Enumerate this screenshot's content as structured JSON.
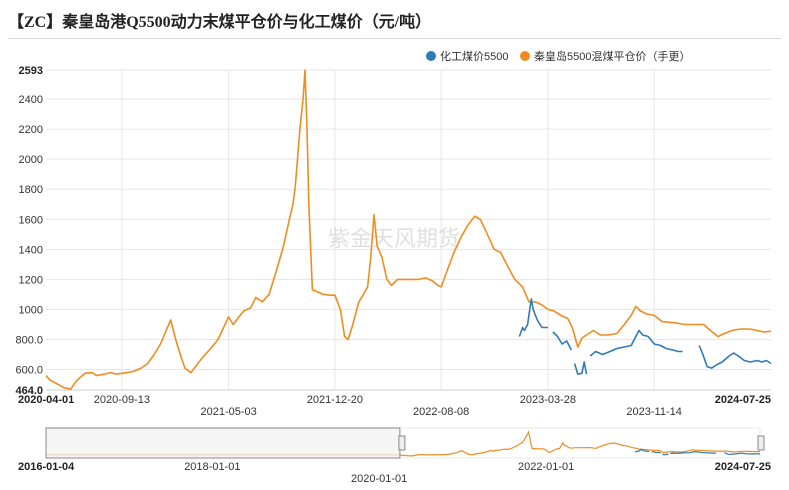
{
  "chart_data": {
    "type": "line",
    "title": "【ZC】秦皇岛港Q5500动力末煤平仓价与化工煤价（元/吨）",
    "watermark": "紫金天风期货",
    "ylim": [
      464.0,
      2593
    ],
    "y_ticks": [
      "464.0",
      "600.0",
      "800.0",
      "1000",
      "1200",
      "1400",
      "1600",
      "1800",
      "2000",
      "2200",
      "2400",
      "2593"
    ],
    "x_range": [
      "2020-04-01",
      "2024-07-25"
    ],
    "x_ticks_row1": [
      "2020-04-01",
      "2020-09-13",
      "2021-12-20",
      "2023-03-28",
      "2024-07-25"
    ],
    "x_ticks_row2": [
      "2021-05-03",
      "2022-08-08",
      "2023-11-14"
    ],
    "navigator": {
      "x_range": [
        "2016-01-04",
        "2024-07-25"
      ],
      "window": [
        "2016-01-04",
        "2020-04-01"
      ],
      "ticks_row1": [
        "2016-01-04",
        "2018-01-01",
        "2022-01-01",
        "2024-07-25"
      ],
      "ticks_row2": [
        "2020-01-01"
      ]
    },
    "legend_position": "top-right",
    "series": [
      {
        "name": "化工煤价5500",
        "color": "#2e7bb5",
        "segments": [
          [
            [
              "2023-01-25",
              820
            ],
            [
              "2023-02-01",
              880
            ],
            [
              "2023-02-05",
              860
            ],
            [
              "2023-02-12",
              900
            ],
            [
              "2023-02-20",
              1070
            ],
            [
              "2023-02-24",
              1000
            ],
            [
              "2023-03-05",
              930
            ],
            [
              "2023-03-15",
              880
            ],
            [
              "2023-03-28",
              880
            ]
          ],
          [
            [
              "2023-04-08",
              850
            ],
            [
              "2023-04-18",
              820
            ],
            [
              "2023-04-28",
              770
            ],
            [
              "2023-05-08",
              790
            ],
            [
              "2023-05-18",
              730
            ]
          ],
          [
            [
              "2023-05-25",
              640
            ],
            [
              "2023-06-01",
              570
            ],
            [
              "2023-06-10",
              575
            ],
            [
              "2023-06-15",
              650
            ],
            [
              "2023-06-20",
              570
            ]
          ],
          [
            [
              "2023-06-28",
              690
            ],
            [
              "2023-07-10",
              720
            ],
            [
              "2023-07-25",
              700
            ],
            [
              "2023-08-10",
              720
            ],
            [
              "2023-08-25",
              740
            ],
            [
              "2023-09-10",
              750
            ],
            [
              "2023-09-25",
              760
            ],
            [
              "2023-10-05",
              820
            ],
            [
              "2023-10-12",
              860
            ],
            [
              "2023-10-20",
              830
            ],
            [
              "2023-11-01",
              820
            ],
            [
              "2023-11-14",
              770
            ],
            [
              "2023-11-28",
              760
            ],
            [
              "2023-12-10",
              740
            ],
            [
              "2023-12-25",
              730
            ],
            [
              "2024-01-05",
              720
            ],
            [
              "2024-01-15",
              720
            ]
          ],
          [
            [
              "2024-02-20",
              760
            ],
            [
              "2024-02-28",
              700
            ],
            [
              "2024-03-08",
              620
            ],
            [
              "2024-03-18",
              610
            ],
            [
              "2024-03-28",
              630
            ],
            [
              "2024-04-10",
              650
            ],
            [
              "2024-04-25",
              690
            ],
            [
              "2024-05-05",
              710
            ],
            [
              "2024-05-15",
              690
            ],
            [
              "2024-05-28",
              660
            ],
            [
              "2024-06-10",
              650
            ],
            [
              "2024-06-25",
              660
            ],
            [
              "2024-07-05",
              650
            ],
            [
              "2024-07-15",
              660
            ],
            [
              "2024-07-25",
              640
            ]
          ]
        ]
      },
      {
        "name": "秦皇岛5500混煤平仓价（手更）",
        "color": "#f28b1e",
        "segments": [
          [
            [
              "2020-04-01",
              560
            ],
            [
              "2020-04-10",
              530
            ],
            [
              "2020-04-25",
              505
            ],
            [
              "2020-05-10",
              480
            ],
            [
              "2020-05-25",
              470
            ],
            [
              "2020-06-05",
              520
            ],
            [
              "2020-06-15",
              550
            ],
            [
              "2020-06-25",
              575
            ],
            [
              "2020-07-10",
              580
            ],
            [
              "2020-07-20",
              560
            ],
            [
              "2020-08-05",
              570
            ],
            [
              "2020-08-20",
              580
            ],
            [
              "2020-09-01",
              570
            ],
            [
              "2020-09-13",
              575
            ],
            [
              "2020-09-25",
              580
            ],
            [
              "2020-10-10",
              590
            ],
            [
              "2020-10-25",
              610
            ],
            [
              "2020-11-08",
              640
            ],
            [
              "2020-11-22",
              700
            ],
            [
              "2020-12-06",
              770
            ],
            [
              "2020-12-18",
              860
            ],
            [
              "2020-12-28",
              930
            ],
            [
              "2021-01-08",
              800
            ],
            [
              "2021-01-18",
              700
            ],
            [
              "2021-01-28",
              610
            ],
            [
              "2021-02-10",
              580
            ],
            [
              "2021-02-25",
              640
            ],
            [
              "2021-03-10",
              690
            ],
            [
              "2021-03-25",
              740
            ],
            [
              "2021-04-10",
              800
            ],
            [
              "2021-04-22",
              880
            ],
            [
              "2021-05-03",
              950
            ],
            [
              "2021-05-13",
              900
            ],
            [
              "2021-05-25",
              950
            ],
            [
              "2021-06-05",
              990
            ],
            [
              "2021-06-20",
              1010
            ],
            [
              "2021-07-01",
              1080
            ],
            [
              "2021-07-15",
              1050
            ],
            [
              "2021-07-30",
              1100
            ],
            [
              "2021-08-15",
              1260
            ],
            [
              "2021-08-30",
              1420
            ],
            [
              "2021-09-12",
              1600
            ],
            [
              "2021-09-20",
              1700
            ],
            [
              "2021-09-25",
              1820
            ],
            [
              "2021-10-05",
              2200
            ],
            [
              "2021-10-12",
              2410
            ],
            [
              "2021-10-16",
              2593
            ],
            [
              "2021-10-20",
              2250
            ],
            [
              "2021-10-25",
              1650
            ],
            [
              "2021-11-01",
              1130
            ],
            [
              "2021-11-10",
              1120
            ],
            [
              "2021-11-25",
              1100
            ],
            [
              "2021-12-10",
              1095
            ],
            [
              "2021-12-20",
              1095
            ],
            [
              "2022-01-01",
              1000
            ],
            [
              "2022-01-10",
              820
            ],
            [
              "2022-01-18",
              800
            ],
            [
              "2022-01-28",
              900
            ],
            [
              "2022-02-10",
              1050
            ],
            [
              "2022-02-20",
              1100
            ],
            [
              "2022-03-01",
              1150
            ],
            [
              "2022-03-08",
              1350
            ],
            [
              "2022-03-15",
              1630
            ],
            [
              "2022-03-22",
              1420
            ],
            [
              "2022-04-01",
              1350
            ],
            [
              "2022-04-12",
              1200
            ],
            [
              "2022-04-22",
              1160
            ],
            [
              "2022-05-05",
              1200
            ],
            [
              "2022-05-20",
              1200
            ],
            [
              "2022-06-05",
              1200
            ],
            [
              "2022-06-20",
              1200
            ],
            [
              "2022-07-05",
              1210
            ],
            [
              "2022-07-20",
              1190
            ],
            [
              "2022-08-01",
              1160
            ],
            [
              "2022-08-08",
              1150
            ],
            [
              "2022-08-20",
              1250
            ],
            [
              "2022-09-05",
              1380
            ],
            [
              "2022-09-20",
              1480
            ],
            [
              "2022-10-05",
              1560
            ],
            [
              "2022-10-20",
              1620
            ],
            [
              "2022-11-01",
              1600
            ],
            [
              "2022-11-15",
              1510
            ],
            [
              "2022-12-01",
              1400
            ],
            [
              "2022-12-15",
              1380
            ],
            [
              "2023-01-01",
              1280
            ],
            [
              "2023-01-15",
              1200
            ],
            [
              "2023-02-01",
              1150
            ],
            [
              "2023-02-15",
              1050
            ],
            [
              "2023-03-01",
              1050
            ],
            [
              "2023-03-15",
              1030
            ],
            [
              "2023-03-28",
              1000
            ],
            [
              "2023-04-10",
              990
            ],
            [
              "2023-04-25",
              960
            ],
            [
              "2023-05-10",
              940
            ],
            [
              "2023-05-20",
              880
            ],
            [
              "2023-06-01",
              750
            ],
            [
              "2023-06-10",
              810
            ],
            [
              "2023-06-25",
              840
            ],
            [
              "2023-07-05",
              860
            ],
            [
              "2023-07-20",
              830
            ],
            [
              "2023-08-05",
              830
            ],
            [
              "2023-08-25",
              840
            ],
            [
              "2023-09-10",
              900
            ],
            [
              "2023-09-25",
              960
            ],
            [
              "2023-10-05",
              1020
            ],
            [
              "2023-10-15",
              990
            ],
            [
              "2023-10-28",
              970
            ],
            [
              "2023-11-14",
              960
            ],
            [
              "2023-12-01",
              920
            ],
            [
              "2023-12-15",
              915
            ],
            [
              "2024-01-01",
              910
            ],
            [
              "2024-01-20",
              900
            ],
            [
              "2024-02-10",
              900
            ],
            [
              "2024-03-01",
              900
            ],
            [
              "2024-03-15",
              860
            ],
            [
              "2024-04-01",
              820
            ],
            [
              "2024-04-15",
              840
            ],
            [
              "2024-05-01",
              860
            ],
            [
              "2024-05-20",
              870
            ],
            [
              "2024-06-10",
              870
            ],
            [
              "2024-06-25",
              860
            ],
            [
              "2024-07-10",
              850
            ],
            [
              "2024-07-25",
              855
            ]
          ]
        ]
      }
    ]
  }
}
